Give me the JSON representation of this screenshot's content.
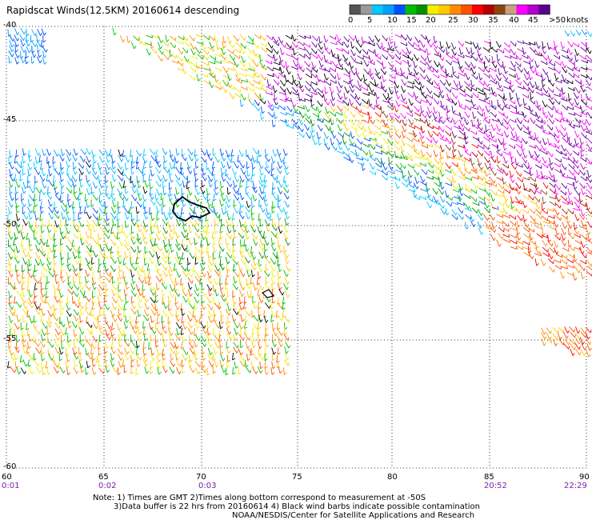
{
  "title": "Rapidscat Winds(12.5KM) 20160614 descending",
  "colorbar": {
    "labels": [
      "0",
      "5",
      "10",
      "15",
      "20",
      "25",
      "30",
      "35",
      "40",
      "45",
      ">50"
    ],
    "units": "knots",
    "colors": [
      "#555555",
      "#9a9a9a",
      "#00c8ff",
      "#00a0ff",
      "#0050ff",
      "#00c000",
      "#009000",
      "#f0f000",
      "#ffc800",
      "#ff8c00",
      "#ff5000",
      "#ff0000",
      "#b40000",
      "#8b4513",
      "#c8a080",
      "#ff00ff",
      "#b400c8",
      "#5a0090"
    ]
  },
  "lat_labels": [
    "-40",
    "-45",
    "-50",
    "-55",
    "-60"
  ],
  "lon_labels": [
    "60",
    "65",
    "70",
    "75",
    "80",
    "85",
    "90"
  ],
  "time_labels": [
    "0:01",
    "0:02",
    "0:03",
    "20:52",
    "22:29"
  ],
  "notes": [
    "Note: 1) Times are GMT 2)Times along bottom correspond to measurement at -50S",
    "3)Data buffer is 22 hrs from 20160614 4) Black wind barbs indicate possible contamination",
    "NOAA/NESDIS/Center for Satellite Applications and Research"
  ]
}
